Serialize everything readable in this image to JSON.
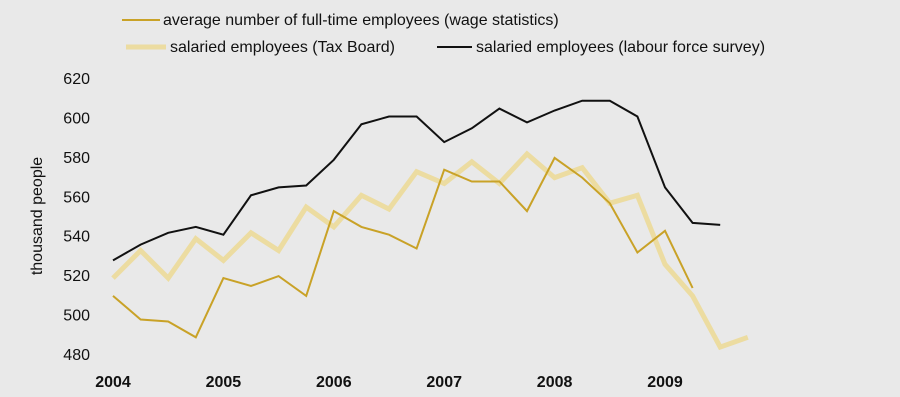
{
  "chart_data": {
    "type": "line",
    "ylabel": "thousand people",
    "ylim": [
      480,
      620
    ],
    "yticks": [
      480,
      500,
      520,
      540,
      560,
      580,
      600,
      620
    ],
    "x_tick_labels": [
      "2004",
      "2005",
      "2006",
      "2007",
      "2008",
      "2009"
    ],
    "x": [
      "2004 Q1",
      "2004 Q2",
      "2004 Q3",
      "2004 Q4",
      "2005 Q1",
      "2005 Q2",
      "2005 Q3",
      "2005 Q4",
      "2006 Q1",
      "2006 Q2",
      "2006 Q3",
      "2006 Q4",
      "2007 Q1",
      "2007 Q2",
      "2007 Q3",
      "2007 Q4",
      "2008 Q1",
      "2008 Q2",
      "2008 Q3",
      "2008 Q4",
      "2009 Q1",
      "2009 Q2",
      "2009 Q3",
      "2009 Q4"
    ],
    "grid": false,
    "legend_position": "top",
    "series": [
      {
        "name": "average number of full-time employees (wage statistics)",
        "color": "#c9a227",
        "values": [
          510,
          498,
          497,
          489,
          519,
          515,
          520,
          510,
          553,
          545,
          541,
          534,
          574,
          568,
          568,
          553,
          580,
          570,
          557,
          532,
          543,
          514,
          null,
          null
        ]
      },
      {
        "name": "salaried employees (Tax Board)",
        "color": "#ecdca1",
        "values": [
          519,
          533,
          519,
          539,
          528,
          542,
          533,
          555,
          545,
          561,
          554,
          573,
          567,
          578,
          567,
          582,
          570,
          575,
          557,
          561,
          526,
          510,
          484,
          489
        ]
      },
      {
        "name": "salaried employees (labour force survey)",
        "color": "#111111",
        "values": [
          528,
          536,
          542,
          545,
          541,
          561,
          565,
          566,
          579,
          597,
          601,
          601,
          588,
          595,
          605,
          598,
          604,
          609,
          609,
          601,
          565,
          547,
          546,
          null
        ]
      }
    ]
  }
}
